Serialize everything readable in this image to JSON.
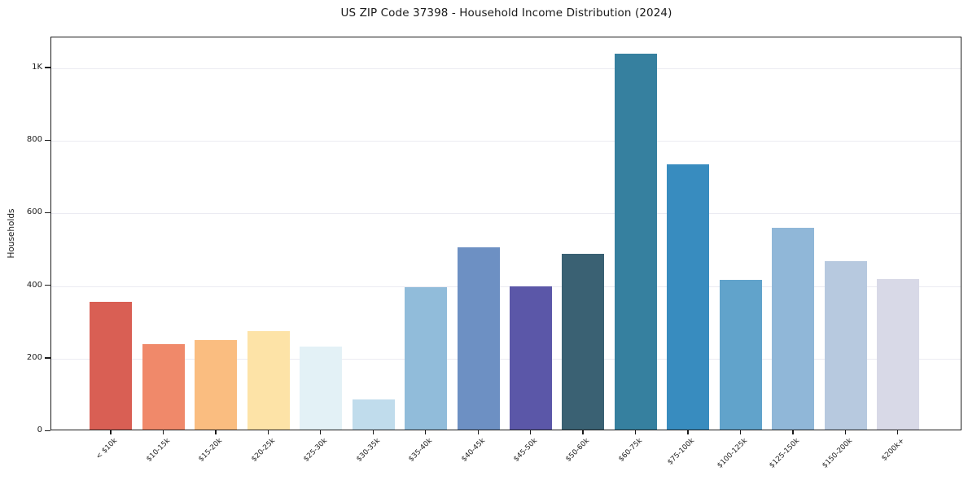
{
  "chart": {
    "title": "US ZIP Code 37398 - Household Income Distribution (2024)",
    "ylabel": "Households"
  },
  "chart_data": {
    "type": "bar",
    "title": "US ZIP Code 37398 - Household Income Distribution (2024)",
    "xlabel": "",
    "ylabel": "Households",
    "categories": [
      "< $10k",
      "$10-15k",
      "$15-20k",
      "$20-25k",
      "$25-30k",
      "$30-35k",
      "$35-40k",
      "$40-45k",
      "$45-50k",
      "$50-60k",
      "$60-75k",
      "$75-100k",
      "$100-125k",
      "$125-150k",
      "$150-200k",
      "$200k+"
    ],
    "values": [
      353,
      236,
      247,
      272,
      229,
      83,
      393,
      503,
      395,
      485,
      1035,
      731,
      412,
      557,
      465,
      415
    ],
    "bar_colors": [
      "#d95f54",
      "#f0896a",
      "#fabd80",
      "#fde3a7",
      "#e3f1f6",
      "#c0dcec",
      "#91bcda",
      "#6d90c3",
      "#5b57a8",
      "#3a6173",
      "#36809f",
      "#388cbf",
      "#61a3cb",
      "#90b7d8",
      "#b7c9df",
      "#d8d9e7"
    ],
    "ylim": [
      0,
      1085
    ],
    "yticks": [
      0,
      200,
      400,
      600,
      800,
      1000
    ],
    "ytick_labels": [
      "0",
      "200",
      "400",
      "600",
      "800",
      "1K"
    ],
    "grid": "horizontal-light",
    "legend": "none",
    "tick_color": "#1b1b1b",
    "grid_color": "#ebebf2"
  }
}
